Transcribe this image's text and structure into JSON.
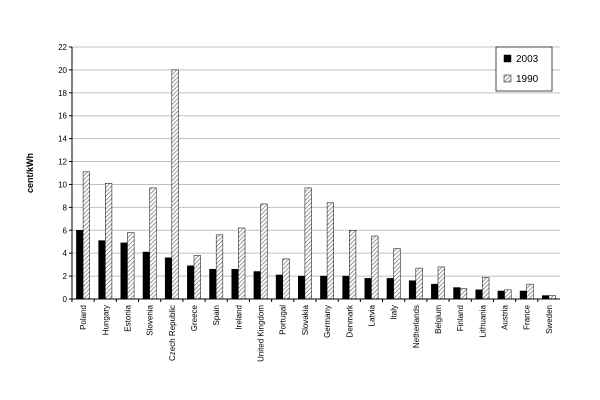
{
  "chart_data": {
    "type": "bar",
    "y_label": "cent/kWh",
    "categories": [
      "Poland",
      "Hungary",
      "Estonia",
      "Slovenia",
      "Czech Republic",
      "Greece",
      "Spain",
      "Ireland",
      "United Kingdom",
      "Portugal",
      "Slovakia",
      "Germany",
      "Denmark",
      "Latvia",
      "Italy",
      "Netherlands",
      "Belgium",
      "Finland",
      "Lithuania",
      "Austria",
      "France",
      "Sweden"
    ],
    "series": [
      {
        "name": "2003",
        "color": "#000000",
        "hatch": false,
        "values": [
          6.0,
          5.1,
          4.9,
          4.1,
          3.6,
          2.9,
          2.6,
          2.6,
          2.4,
          2.1,
          2.0,
          2.0,
          2.0,
          1.8,
          1.8,
          1.6,
          1.3,
          1.0,
          0.8,
          0.7,
          0.7,
          0.3
        ]
      },
      {
        "name": "1990",
        "color": "#808080",
        "hatch": true,
        "values": [
          11.1,
          10.1,
          5.8,
          9.7,
          20.0,
          3.8,
          5.6,
          6.2,
          8.3,
          3.5,
          9.7,
          8.4,
          6.0,
          5.5,
          4.4,
          2.7,
          2.8,
          0.9,
          1.9,
          0.8,
          1.3,
          0.3
        ]
      }
    ],
    "ylim": [
      0,
      22
    ],
    "yticks": [
      0,
      2,
      4,
      6,
      8,
      10,
      12,
      14,
      16,
      18,
      20,
      22
    ],
    "grid": true,
    "legend": "top-right"
  }
}
